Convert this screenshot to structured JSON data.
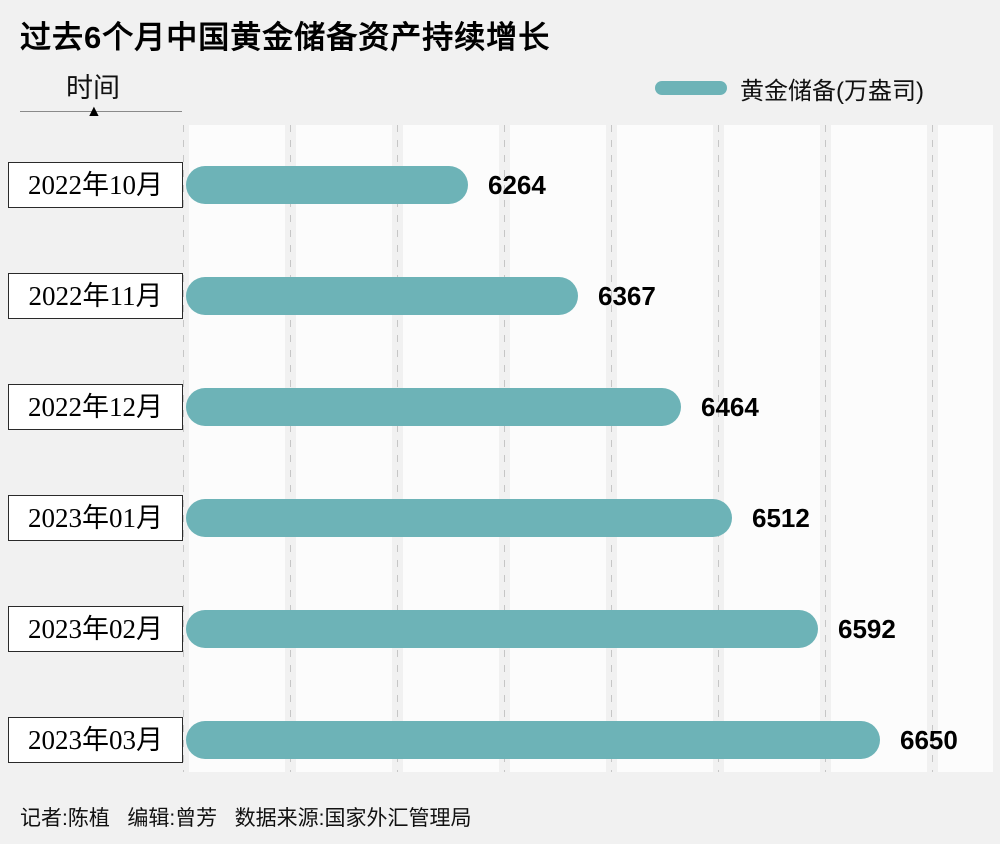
{
  "title": "过去6个月中国黄金储备资产持续增长",
  "axis_label": "时间",
  "legend_label": "黄金储备(万盎司)",
  "footer": "记者:陈植   编辑:曾芳   数据来源:国家外汇管理局",
  "colors": {
    "bar": "#6db3b7",
    "background": "#f1f1f1",
    "plot": "#fcfcfc",
    "grid": "#c6c6c6",
    "text": "#000000"
  },
  "chart_data": {
    "type": "bar",
    "orientation": "horizontal",
    "title": "过去6个月中国黄金储备资产持续增长",
    "ylabel": "时间",
    "xlabel": "",
    "legend": [
      "黄金储备(万盎司)"
    ],
    "legend_position": "top-right",
    "categories": [
      "2022年10月",
      "2022年11月",
      "2022年12月",
      "2023年01月",
      "2023年02月",
      "2023年03月"
    ],
    "series": [
      {
        "name": "黄金储备(万盎司)",
        "values": [
          6264,
          6367,
          6464,
          6512,
          6592,
          6650
        ]
      }
    ],
    "values": [
      6264,
      6367,
      6464,
      6512,
      6592,
      6650
    ],
    "data_labels": [
      "6264",
      "6367",
      "6464",
      "6512",
      "6592",
      "6650"
    ],
    "xlim": [
      6000,
      6760
    ],
    "grid": "vertical-dashed",
    "bar_color": "#6db3b7"
  }
}
